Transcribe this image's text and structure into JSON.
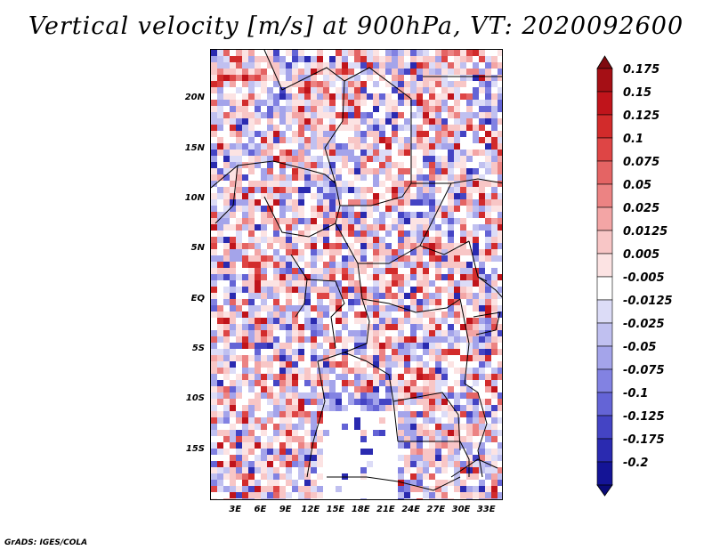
{
  "title": "Vertical velocity [m/s] at 900hPa, VT: 2020092600",
  "credit": "GrADS: IGES/COLA",
  "map": {
    "lat_labels": [
      "20N",
      "15N",
      "10N",
      "5N",
      "EQ",
      "5S",
      "10S",
      "15S"
    ],
    "lat_values": [
      20,
      15,
      10,
      5,
      0,
      -5,
      -10,
      -15
    ],
    "lon_labels": [
      "3E",
      "6E",
      "9E",
      "12E",
      "15E",
      "18E",
      "21E",
      "24E",
      "27E",
      "30E",
      "33E"
    ],
    "lon_values": [
      3,
      6,
      9,
      12,
      15,
      18,
      21,
      24,
      27,
      30,
      33
    ],
    "lon_range": [
      0,
      35
    ],
    "lat_range": [
      -20,
      25
    ]
  },
  "colorbar": {
    "labels": [
      "0.175",
      "0.15",
      "0.125",
      "0.1",
      "0.075",
      "0.05",
      "0.025",
      "0.0125",
      "0.005",
      "-0.005",
      "-0.0125",
      "-0.025",
      "-0.05",
      "-0.075",
      "-0.1",
      "-0.125",
      "-0.175",
      "-0.2"
    ],
    "colors": [
      "#a50f15",
      "#c0141b",
      "#d22b2b",
      "#de4545",
      "#e46464",
      "#ec8383",
      "#f3a5a5",
      "#f8c6c6",
      "#fce3e3",
      "#ffffff",
      "#dcdcf7",
      "#c0c0f0",
      "#a4a4ea",
      "#8282e2",
      "#6464d6",
      "#4444c4",
      "#2a2ab0",
      "#141496"
    ],
    "top_arrow_color": "#7f0a0f",
    "bottom_arrow_color": "#0a0a78"
  }
}
